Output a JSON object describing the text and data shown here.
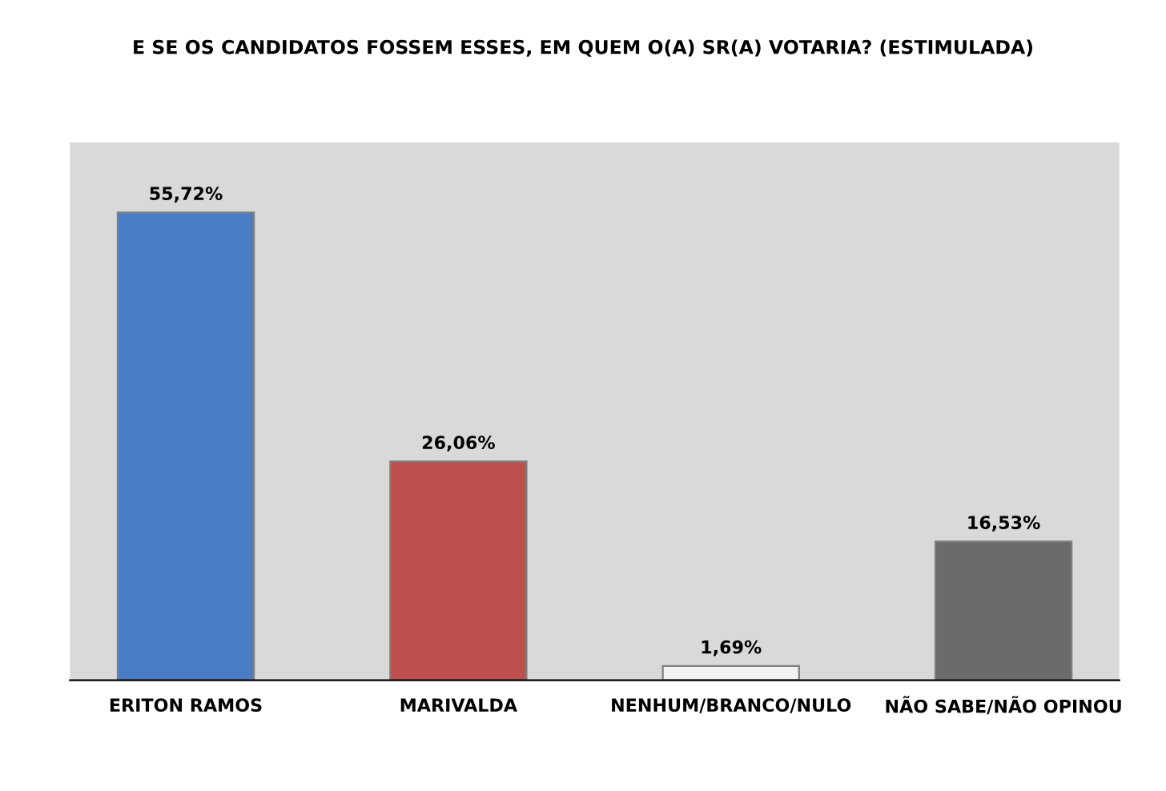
{
  "chart_data": {
    "type": "bar",
    "title": "E SE OS CANDIDATOS FOSSEM ESSES, EM QUEM O(A) SR(A) VOTARIA? (ESTIMULADA)",
    "categories": [
      "ERITON RAMOS",
      "MARIVALDA",
      "NENHUM/BRANCO/NULO",
      "NÃO SABE/NÃO OPINOU"
    ],
    "values": [
      55.72,
      26.06,
      1.69,
      16.53
    ],
    "value_labels": [
      "55,72%",
      "26,06%",
      "1,69%",
      "16,53%"
    ],
    "colors": [
      "#4a7ec4",
      "#c0504d",
      "#f2f2f2",
      "#6b6b6b"
    ],
    "grid": false
  }
}
